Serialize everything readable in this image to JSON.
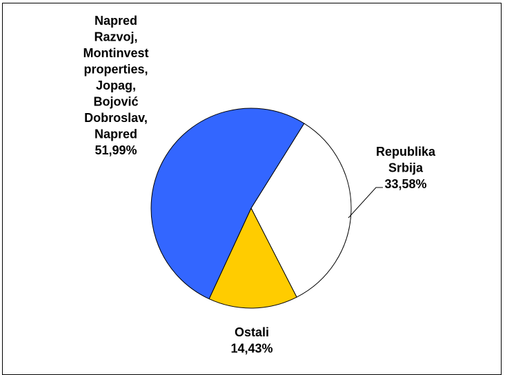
{
  "chart_data": {
    "type": "pie",
    "title": "",
    "slices": [
      {
        "label_lines": [
          "Republika",
          "Srbija"
        ],
        "value": 33.58,
        "value_label": "33,58%",
        "color": "#FFFFFF"
      },
      {
        "label_lines": [
          "Ostali"
        ],
        "value": 14.43,
        "value_label": "14,43%",
        "color": "#FFCC00"
      },
      {
        "label_lines": [
          "Napred",
          "Razvoj,",
          "Montinvest",
          "properties,",
          "Jopag,",
          "Bojović",
          "Dobroslav,",
          "Napred"
        ],
        "value": 51.99,
        "value_label": "51,99%",
        "color": "#3366FF"
      }
    ],
    "legend": "none",
    "data_labels": "outside"
  }
}
